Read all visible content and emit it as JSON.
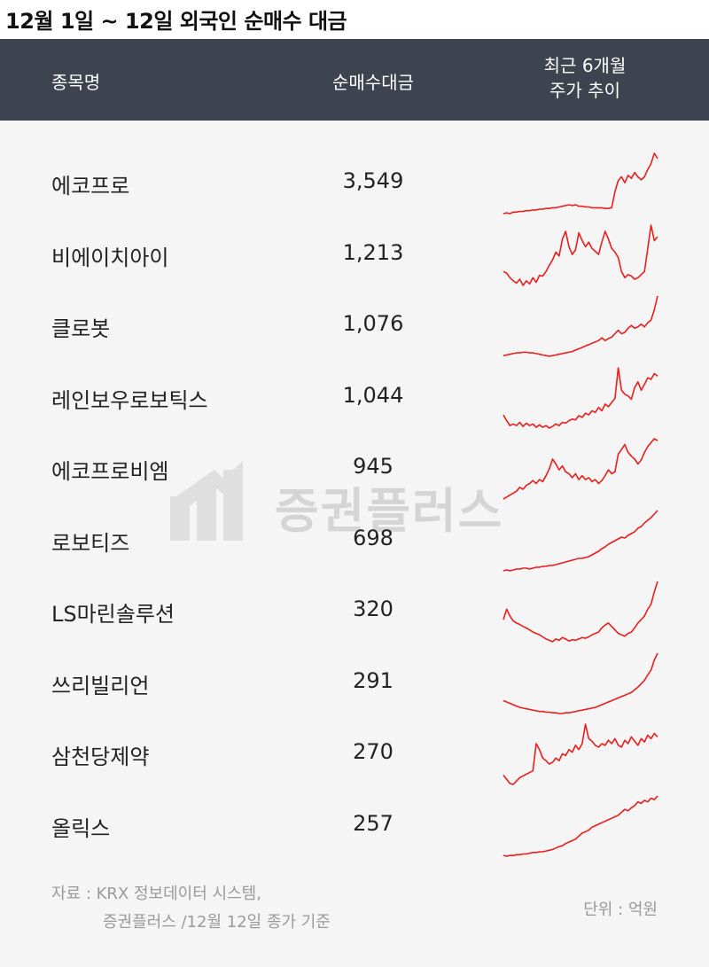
{
  "title": "12월 1일 ~ 12일 외국인 순매수 대금",
  "header": {
    "name_label": "종목명",
    "value_label": "순매수대금",
    "trend_label_line1": "최근 6개월",
    "trend_label_line2": "주가 추이"
  },
  "watermark": "증권플러스",
  "chart_data": {
    "type": "table",
    "columns": [
      "종목명",
      "순매수대금",
      "최근 6개월 주가 추이"
    ],
    "unit": "단위 : 억원",
    "rows": [
      {
        "name": "에코프로",
        "value": "3,549",
        "trend": [
          10,
          11,
          10,
          12,
          12,
          13,
          13,
          14,
          14,
          15,
          15,
          16,
          16,
          17,
          17,
          18,
          18,
          19,
          20,
          21,
          22,
          21,
          22,
          20,
          20,
          19,
          19,
          18,
          18,
          18,
          18,
          17,
          17,
          18,
          40,
          55,
          60,
          52,
          62,
          58,
          66,
          60,
          56,
          60,
          70,
          78,
          92,
          85
        ]
      },
      {
        "name": "비에이치아이",
        "value": "1,213",
        "trend": [
          30,
          28,
          22,
          18,
          15,
          20,
          12,
          18,
          14,
          22,
          16,
          25,
          24,
          30,
          38,
          45,
          55,
          50,
          72,
          82,
          62,
          52,
          58,
          80,
          70,
          62,
          68,
          60,
          56,
          52,
          68,
          82,
          72,
          60,
          55,
          48,
          30,
          22,
          26,
          24,
          20,
          22,
          26,
          30,
          60,
          90,
          70,
          75
        ]
      },
      {
        "name": "클로봇",
        "value": "1,076",
        "trend": [
          8,
          9,
          10,
          11,
          12,
          12,
          13,
          13,
          12,
          12,
          11,
          10,
          9,
          8,
          7,
          8,
          9,
          10,
          11,
          12,
          13,
          14,
          16,
          18,
          20,
          22,
          24,
          26,
          28,
          30,
          34,
          30,
          33,
          35,
          40,
          45,
          40,
          42,
          48,
          52,
          48,
          50,
          54,
          50,
          56,
          60,
          75,
          95
        ]
      },
      {
        "name": "레인보우로보틱스",
        "value": "1,044",
        "trend": [
          25,
          18,
          12,
          14,
          12,
          16,
          11,
          15,
          12,
          14,
          10,
          13,
          10,
          12,
          9,
          11,
          14,
          12,
          16,
          15,
          18,
          20,
          19,
          24,
          22,
          27,
          25,
          30,
          28,
          34,
          30,
          38,
          35,
          40,
          45,
          82,
          55,
          50,
          48,
          44,
          58,
          65,
          55,
          62,
          70,
          68,
          75,
          72
        ]
      },
      {
        "name": "에코프로비엠",
        "value": "945",
        "trend": [
          14,
          16,
          18,
          20,
          22,
          26,
          24,
          28,
          30,
          33,
          30,
          34,
          32,
          38,
          45,
          55,
          50,
          44,
          48,
          42,
          40,
          36,
          40,
          34,
          38,
          34,
          36,
          32,
          34,
          30,
          33,
          38,
          44,
          40,
          42,
          60,
          65,
          70,
          62,
          58,
          55,
          50,
          54,
          62,
          68,
          72,
          76,
          74
        ]
      },
      {
        "name": "로보티즈",
        "value": "698",
        "trend": [
          8,
          9,
          8,
          9,
          10,
          10,
          11,
          11,
          10,
          11,
          12,
          12,
          13,
          13,
          14,
          14,
          15,
          16,
          17,
          18,
          19,
          20,
          21,
          22,
          22,
          23,
          24,
          26,
          28,
          30,
          33,
          35,
          38,
          40,
          42,
          44,
          46,
          45,
          48,
          50,
          52,
          56,
          58,
          62,
          65,
          68,
          72,
          76
        ]
      },
      {
        "name": "LS마린솔루션",
        "value": "320",
        "trend": [
          40,
          55,
          45,
          38,
          35,
          33,
          30,
          28,
          25,
          22,
          20,
          18,
          15,
          12,
          10,
          8,
          12,
          10,
          14,
          12,
          9,
          11,
          10,
          12,
          14,
          13,
          15,
          18,
          20,
          22,
          28,
          32,
          35,
          30,
          25,
          20,
          18,
          16,
          20,
          22,
          28,
          35,
          40,
          45,
          55,
          62,
          80,
          95
        ]
      },
      {
        "name": "쓰리빌리언",
        "value": "291",
        "trend": [
          30,
          28,
          26,
          24,
          22,
          20,
          19,
          18,
          17,
          16,
          15,
          14,
          14,
          13,
          13,
          12,
          12,
          11,
          11,
          12,
          12,
          13,
          14,
          15,
          16,
          17,
          18,
          19,
          20,
          22,
          24,
          26,
          28,
          30,
          32,
          34,
          36,
          38,
          40,
          42,
          46,
          50,
          55,
          60,
          68,
          75,
          90,
          100
        ]
      },
      {
        "name": "삼천당제약",
        "value": "270",
        "trend": [
          25,
          20,
          15,
          14,
          18,
          22,
          24,
          26,
          28,
          30,
          62,
          55,
          45,
          42,
          38,
          40,
          45,
          42,
          50,
          48,
          55,
          52,
          60,
          55,
          62,
          85,
          68,
          65,
          60,
          58,
          62,
          60,
          66,
          62,
          68,
          60,
          58,
          66,
          62,
          70,
          65,
          60,
          68,
          64,
          72,
          68,
          74,
          70
        ]
      },
      {
        "name": "올릭스",
        "value": "257",
        "trend": [
          8,
          7,
          8,
          8,
          9,
          9,
          10,
          10,
          11,
          12,
          12,
          13,
          13,
          14,
          15,
          16,
          18,
          20,
          21,
          24,
          26,
          28,
          30,
          34,
          38,
          40,
          42,
          46,
          48,
          50,
          52,
          54,
          56,
          58,
          60,
          62,
          66,
          70,
          68,
          72,
          75,
          80,
          78,
          82,
          80,
          85,
          83,
          88
        ]
      }
    ]
  },
  "footer": {
    "source_line1": "자료 : KRX 정보데이터 시스템,",
    "source_line2": "증권플러스 /12월 12일 종가 기준",
    "unit": "단위 : 억원"
  }
}
